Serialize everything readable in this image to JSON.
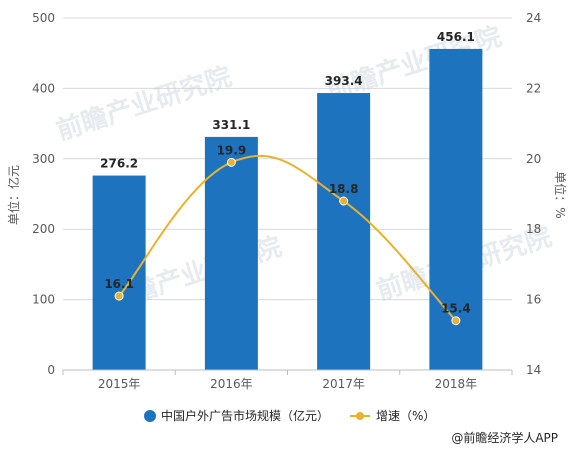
{
  "chart_data": {
    "type": "bar",
    "categories": [
      "2015年",
      "2016年",
      "2017年",
      "2018年"
    ],
    "series": [
      {
        "name": "中国户外广告市场规模（亿元）",
        "type": "bar",
        "axis": "left",
        "values": [
          276.2,
          331.1,
          393.4,
          456.1
        ],
        "color": "#1e73be"
      },
      {
        "name": "增速（%）",
        "type": "line",
        "axis": "right",
        "values": [
          16.1,
          19.9,
          18.8,
          15.4
        ],
        "color": "#e8b22e"
      }
    ],
    "ylabel": "单位：亿元",
    "ylabel_right": "单位：%",
    "ylim": [
      0,
      500
    ],
    "ylim_right": [
      14,
      24
    ],
    "yticks": [
      0,
      100,
      200,
      300,
      400,
      500
    ],
    "yticks_right": [
      14,
      16,
      18,
      20,
      22,
      24
    ],
    "grid": true,
    "legend_position": "bottom"
  },
  "watermark": "前瞻产业研究院",
  "credit": "@前瞻经济学人APP"
}
